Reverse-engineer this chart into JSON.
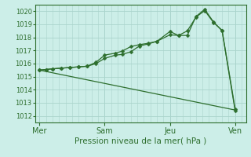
{
  "xlabel": "Pression niveau de la mer( hPa )",
  "bg_color": "#cceee8",
  "grid_color": "#aad4cc",
  "line_color": "#2d6e2d",
  "markersize": 2.5,
  "ylim": [
    1011.5,
    1020.5
  ],
  "yticks": [
    1012,
    1013,
    1014,
    1015,
    1016,
    1017,
    1018,
    1019,
    1020
  ],
  "xtick_labels": [
    "Mer",
    "Sam",
    "Jeu",
    "Ven"
  ],
  "xtick_positions": [
    0,
    30,
    60,
    90
  ],
  "series1_x": [
    0,
    3,
    6,
    10,
    14,
    18,
    22,
    26,
    30,
    35,
    38,
    42,
    46,
    50,
    54,
    60,
    64,
    68,
    72,
    76,
    80,
    84,
    90
  ],
  "series1_y": [
    1015.5,
    1015.55,
    1015.6,
    1015.65,
    1015.7,
    1015.75,
    1015.8,
    1016.0,
    1016.4,
    1016.65,
    1016.7,
    1016.9,
    1017.35,
    1017.5,
    1017.7,
    1018.45,
    1018.15,
    1018.15,
    1019.6,
    1020.15,
    1019.2,
    1018.5,
    1012.4
  ],
  "series2_x": [
    0,
    3,
    6,
    10,
    14,
    18,
    22,
    26,
    30,
    35,
    38,
    42,
    46,
    50,
    54,
    60,
    64,
    68,
    72,
    76,
    80,
    84,
    90
  ],
  "series2_y": [
    1015.5,
    1015.55,
    1015.6,
    1015.65,
    1015.7,
    1015.75,
    1015.8,
    1016.1,
    1016.65,
    1016.8,
    1016.95,
    1017.3,
    1017.45,
    1017.55,
    1017.7,
    1018.2,
    1018.15,
    1018.5,
    1019.55,
    1020.05,
    1019.15,
    1018.55,
    1012.55
  ],
  "series3_x": [
    0,
    90
  ],
  "series3_y": [
    1015.5,
    1012.45
  ],
  "xlim": [
    -2,
    95
  ]
}
